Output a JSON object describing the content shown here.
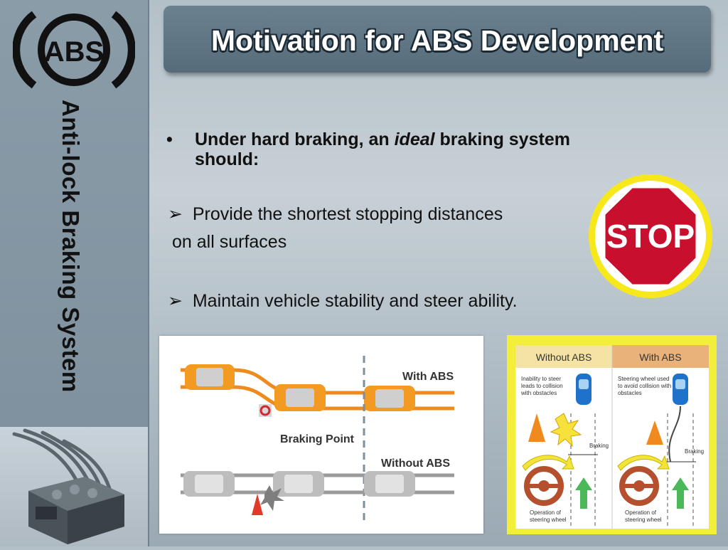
{
  "slide": {
    "title": "Motivation for ABS Development",
    "side_title": "Anti-lock Braking System",
    "logo_text": "ABS",
    "bullet_main": {
      "symbol": "•",
      "before": "Under hard braking, an ",
      "emphasis": "ideal",
      "after": " braking system should:"
    },
    "points": [
      {
        "symbol": "➢",
        "line1": "Provide the shortest stopping distances",
        "line2": "on all surfaces"
      },
      {
        "symbol": "➢",
        "line1": "Maintain vehicle stability and steer ability."
      }
    ],
    "stop_sign": "STOP"
  },
  "diagram_left": {
    "with_abs": "With ABS",
    "without_abs": "Without ABS",
    "braking_point": "Braking Point"
  },
  "diagram_right": {
    "header_left": "Without ABS",
    "header_right": "With ABS",
    "desc_left": [
      "Inability to steer",
      "leads to collision",
      "with obstacles"
    ],
    "desc_right": [
      "Steering wheel used",
      "to avoid collision with",
      "obstacles"
    ],
    "braking": "Braking",
    "operation": [
      "Operation of",
      "steering wheel"
    ]
  },
  "colors": {
    "title_bar": "#5f7585",
    "sidebar": "#8394a1",
    "stop_red": "#c8102e",
    "orange_lane": "#ee8a1e",
    "gray_lane": "#9a9a9a",
    "yellow_panel": "#f2ee3a",
    "header_left": "#f4e3a4",
    "header_right": "#e9b27a"
  }
}
